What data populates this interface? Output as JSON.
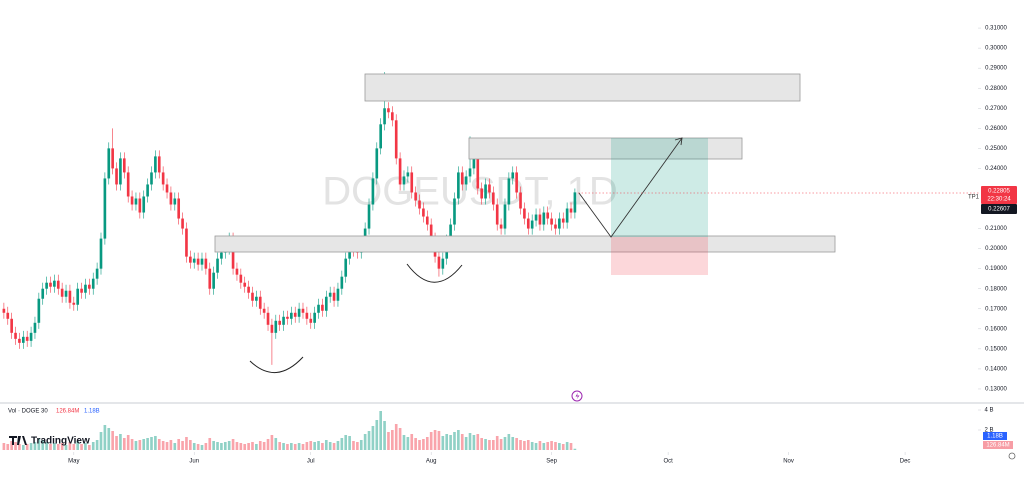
{
  "chart_data": {
    "type": "candlestick",
    "watermark": "DOGEUSDT, 1D",
    "logo": "TradingView",
    "annotation": "TP1",
    "last_price_label": "0.22805",
    "countdown": "22:30:24",
    "prev_price_label": "0.22607",
    "volume_legend": "Vol · DOGE 30",
    "volume_last_label": "126.84M",
    "volume_ma_label": "1.18B",
    "up_color": "#089981",
    "down_color": "#f23645",
    "xlim": [
      -1,
      250
    ],
    "xticks": [
      {
        "value": 18,
        "label": "May"
      },
      {
        "value": 49,
        "label": "Jun"
      },
      {
        "value": 79,
        "label": "Jul"
      },
      {
        "value": 110,
        "label": "Aug"
      },
      {
        "value": 141,
        "label": "Sep"
      },
      {
        "value": 171,
        "label": "Oct"
      },
      {
        "value": 202,
        "label": "Nov"
      },
      {
        "value": 232,
        "label": "Dec"
      }
    ],
    "ylim": [
      0.123,
      0.324
    ],
    "yticks": [
      {
        "value": 0.13,
        "label": "0.13000"
      },
      {
        "value": 0.14,
        "label": "0.14000"
      },
      {
        "value": 0.15,
        "label": "0.15000"
      },
      {
        "value": 0.16,
        "label": "0.16000"
      },
      {
        "value": 0.17,
        "label": "0.17000"
      },
      {
        "value": 0.18,
        "label": "0.18000"
      },
      {
        "value": 0.19,
        "label": "0.19000"
      },
      {
        "value": 0.2,
        "label": "0.20000"
      },
      {
        "value": 0.21,
        "label": "0.21000"
      },
      {
        "value": 0.24,
        "label": "0.24000"
      },
      {
        "value": 0.25,
        "label": "0.25000"
      },
      {
        "value": 0.26,
        "label": "0.26000"
      },
      {
        "value": 0.27,
        "label": "0.27000"
      },
      {
        "value": 0.28,
        "label": "0.28000"
      },
      {
        "value": 0.29,
        "label": "0.29000"
      },
      {
        "value": 0.3,
        "label": "0.30000"
      },
      {
        "value": 0.31,
        "label": "0.31000"
      }
    ],
    "vlim": [
      0,
      4.5
    ],
    "vticks": [
      {
        "value": 4,
        "label": "4 B"
      },
      {
        "value": 2,
        "label": "2 B"
      }
    ],
    "open": [
      0.17,
      0.168,
      0.165,
      0.158,
      0.155,
      0.153,
      0.156,
      0.154,
      0.158,
      0.163,
      0.175,
      0.18,
      0.183,
      0.181,
      0.184,
      0.18,
      0.176,
      0.179,
      0.173,
      0.172,
      0.18,
      0.178,
      0.182,
      0.18,
      0.185,
      0.19,
      0.205,
      0.235,
      0.25,
      0.24,
      0.232,
      0.245,
      0.238,
      0.226,
      0.222,
      0.225,
      0.218,
      0.226,
      0.232,
      0.238,
      0.246,
      0.238,
      0.232,
      0.228,
      0.222,
      0.225,
      0.215,
      0.21,
      0.196,
      0.193,
      0.195,
      0.192,
      0.195,
      0.19,
      0.18,
      0.188,
      0.195,
      0.198,
      0.2,
      0.205,
      0.19,
      0.187,
      0.183,
      0.181,
      0.178,
      0.174,
      0.176,
      0.17,
      0.168,
      0.162,
      0.158,
      0.164,
      0.162,
      0.166,
      0.165,
      0.168,
      0.166,
      0.17,
      0.168,
      0.165,
      0.163,
      0.168,
      0.172,
      0.169,
      0.176,
      0.178,
      0.174,
      0.18,
      0.186,
      0.195,
      0.2,
      0.199,
      0.198,
      0.202,
      0.21,
      0.222,
      0.235,
      0.25,
      0.262,
      0.27,
      0.268,
      0.264,
      0.245,
      0.232,
      0.236,
      0.238,
      0.228,
      0.224,
      0.22,
      0.216,
      0.212,
      0.205,
      0.196,
      0.19,
      0.195,
      0.204,
      0.212,
      0.225,
      0.238,
      0.232,
      0.236,
      0.24,
      0.245,
      0.23,
      0.225,
      0.232,
      0.228,
      0.222,
      0.212,
      0.21,
      0.222,
      0.235,
      0.238,
      0.228,
      0.22,
      0.215,
      0.21,
      0.214,
      0.217,
      0.212,
      0.218,
      0.215,
      0.212,
      0.21,
      0.215,
      0.213,
      0.22,
      0.218
    ],
    "high": [
      0.173,
      0.171,
      0.168,
      0.161,
      0.158,
      0.159,
      0.159,
      0.161,
      0.166,
      0.178,
      0.183,
      0.186,
      0.186,
      0.187,
      0.187,
      0.183,
      0.182,
      0.182,
      0.176,
      0.183,
      0.183,
      0.185,
      0.185,
      0.188,
      0.193,
      0.208,
      0.238,
      0.253,
      0.26,
      0.243,
      0.248,
      0.248,
      0.241,
      0.229,
      0.228,
      0.228,
      0.229,
      0.235,
      0.241,
      0.249,
      0.249,
      0.241,
      0.235,
      0.231,
      0.228,
      0.228,
      0.218,
      0.213,
      0.199,
      0.198,
      0.198,
      0.198,
      0.198,
      0.193,
      0.191,
      0.198,
      0.201,
      0.203,
      0.208,
      0.208,
      0.193,
      0.19,
      0.186,
      0.184,
      0.181,
      0.179,
      0.179,
      0.173,
      0.171,
      0.165,
      0.167,
      0.167,
      0.169,
      0.169,
      0.171,
      0.171,
      0.173,
      0.173,
      0.171,
      0.168,
      0.171,
      0.175,
      0.175,
      0.179,
      0.181,
      0.181,
      0.183,
      0.189,
      0.198,
      0.203,
      0.203,
      0.202,
      0.205,
      0.213,
      0.225,
      0.238,
      0.253,
      0.265,
      0.288,
      0.273,
      0.271,
      0.267,
      0.248,
      0.239,
      0.241,
      0.241,
      0.231,
      0.227,
      0.223,
      0.219,
      0.215,
      0.208,
      0.199,
      0.198,
      0.207,
      0.215,
      0.228,
      0.241,
      0.241,
      0.239,
      0.256,
      0.248,
      0.248,
      0.233,
      0.235,
      0.235,
      0.231,
      0.225,
      0.215,
      0.225,
      0.238,
      0.241,
      0.241,
      0.231,
      0.223,
      0.218,
      0.217,
      0.22,
      0.22,
      0.221,
      0.221,
      0.218,
      0.215,
      0.218,
      0.218,
      0.223,
      0.223,
      0.23
    ],
    "low": [
      0.165,
      0.162,
      0.155,
      0.152,
      0.15,
      0.15,
      0.151,
      0.151,
      0.155,
      0.16,
      0.172,
      0.177,
      0.178,
      0.178,
      0.177,
      0.173,
      0.173,
      0.17,
      0.169,
      0.169,
      0.175,
      0.175,
      0.177,
      0.177,
      0.182,
      0.187,
      0.202,
      0.232,
      0.237,
      0.229,
      0.229,
      0.235,
      0.223,
      0.219,
      0.219,
      0.215,
      0.215,
      0.223,
      0.229,
      0.235,
      0.235,
      0.229,
      0.225,
      0.219,
      0.219,
      0.212,
      0.207,
      0.193,
      0.19,
      0.19,
      0.189,
      0.189,
      0.187,
      0.177,
      0.177,
      0.185,
      0.192,
      0.195,
      0.197,
      0.187,
      0.184,
      0.18,
      0.178,
      0.175,
      0.171,
      0.171,
      0.167,
      0.165,
      0.159,
      0.142,
      0.155,
      0.159,
      0.159,
      0.162,
      0.162,
      0.163,
      0.163,
      0.165,
      0.162,
      0.16,
      0.16,
      0.165,
      0.166,
      0.166,
      0.173,
      0.171,
      0.171,
      0.177,
      0.183,
      0.192,
      0.196,
      0.195,
      0.195,
      0.199,
      0.207,
      0.219,
      0.232,
      0.247,
      0.259,
      0.265,
      0.261,
      0.242,
      0.229,
      0.229,
      0.233,
      0.225,
      0.221,
      0.217,
      0.213,
      0.209,
      0.202,
      0.193,
      0.186,
      0.187,
      0.192,
      0.201,
      0.209,
      0.222,
      0.229,
      0.229,
      0.233,
      0.237,
      0.227,
      0.222,
      0.222,
      0.225,
      0.219,
      0.209,
      0.207,
      0.207,
      0.219,
      0.232,
      0.225,
      0.217,
      0.212,
      0.207,
      0.207,
      0.211,
      0.209,
      0.209,
      0.212,
      0.209,
      0.207,
      0.207,
      0.21,
      0.21,
      0.215,
      0.215
    ],
    "close": [
      0.168,
      0.165,
      0.158,
      0.155,
      0.153,
      0.156,
      0.154,
      0.158,
      0.163,
      0.175,
      0.18,
      0.183,
      0.181,
      0.184,
      0.18,
      0.176,
      0.179,
      0.173,
      0.172,
      0.18,
      0.178,
      0.182,
      0.18,
      0.185,
      0.19,
      0.205,
      0.235,
      0.25,
      0.24,
      0.232,
      0.245,
      0.238,
      0.226,
      0.222,
      0.225,
      0.218,
      0.226,
      0.232,
      0.238,
      0.246,
      0.238,
      0.232,
      0.228,
      0.222,
      0.225,
      0.215,
      0.21,
      0.196,
      0.193,
      0.195,
      0.192,
      0.195,
      0.19,
      0.18,
      0.188,
      0.195,
      0.198,
      0.2,
      0.205,
      0.19,
      0.187,
      0.183,
      0.181,
      0.178,
      0.174,
      0.176,
      0.17,
      0.168,
      0.162,
      0.158,
      0.164,
      0.162,
      0.166,
      0.165,
      0.168,
      0.166,
      0.17,
      0.168,
      0.165,
      0.163,
      0.168,
      0.172,
      0.169,
      0.176,
      0.178,
      0.174,
      0.18,
      0.186,
      0.195,
      0.2,
      0.199,
      0.198,
      0.202,
      0.21,
      0.222,
      0.235,
      0.25,
      0.262,
      0.27,
      0.268,
      0.264,
      0.245,
      0.232,
      0.236,
      0.238,
      0.228,
      0.224,
      0.22,
      0.216,
      0.212,
      0.205,
      0.196,
      0.19,
      0.195,
      0.204,
      0.212,
      0.225,
      0.238,
      0.232,
      0.236,
      0.24,
      0.245,
      0.23,
      0.225,
      0.232,
      0.228,
      0.222,
      0.212,
      0.21,
      0.222,
      0.235,
      0.238,
      0.228,
      0.22,
      0.215,
      0.21,
      0.214,
      0.217,
      0.212,
      0.218,
      0.215,
      0.212,
      0.21,
      0.215,
      0.213,
      0.22,
      0.218,
      0.22805
    ],
    "volume": [
      0.7,
      0.6,
      0.9,
      0.8,
      0.6,
      0.5,
      0.6,
      0.7,
      0.8,
      1.2,
      1.0,
      0.8,
      0.6,
      0.7,
      0.6,
      0.7,
      0.5,
      0.8,
      0.6,
      0.9,
      0.6,
      0.7,
      0.5,
      0.8,
      1.0,
      1.8,
      2.5,
      2.2,
      1.9,
      1.4,
      1.6,
      1.2,
      1.5,
      1.1,
      0.9,
      1.0,
      1.1,
      1.2,
      1.3,
      1.4,
      1.1,
      0.9,
      0.8,
      1.0,
      0.7,
      1.1,
      0.9,
      1.3,
      1.0,
      0.7,
      0.6,
      0.5,
      0.7,
      1.2,
      0.9,
      0.8,
      0.7,
      0.8,
      0.9,
      1.1,
      0.8,
      0.7,
      0.6,
      0.7,
      0.8,
      0.6,
      0.9,
      0.8,
      1.1,
      1.5,
      1.2,
      0.8,
      0.7,
      0.6,
      0.7,
      0.6,
      0.7,
      0.6,
      0.8,
      0.9,
      0.8,
      0.9,
      0.7,
      1.0,
      0.8,
      0.7,
      0.9,
      1.2,
      1.5,
      1.4,
      0.9,
      0.8,
      1.0,
      1.6,
      1.9,
      2.4,
      3.0,
      3.9,
      2.9,
      1.8,
      2.0,
      2.6,
      2.2,
      1.5,
      1.3,
      1.6,
      1.2,
      1.0,
      1.1,
      1.3,
      1.8,
      2.0,
      1.9,
      1.4,
      1.6,
      1.5,
      1.8,
      2.0,
      1.6,
      1.3,
      1.7,
      1.5,
      1.6,
      1.2,
      1.1,
      1.0,
      1.0,
      1.4,
      1.1,
      1.3,
      1.6,
      1.3,
      1.2,
      1.0,
      0.9,
      1.0,
      0.8,
      0.7,
      0.9,
      0.7,
      0.8,
      0.9,
      0.8,
      0.7,
      0.6,
      0.8,
      0.7,
      0.12684
    ]
  }
}
